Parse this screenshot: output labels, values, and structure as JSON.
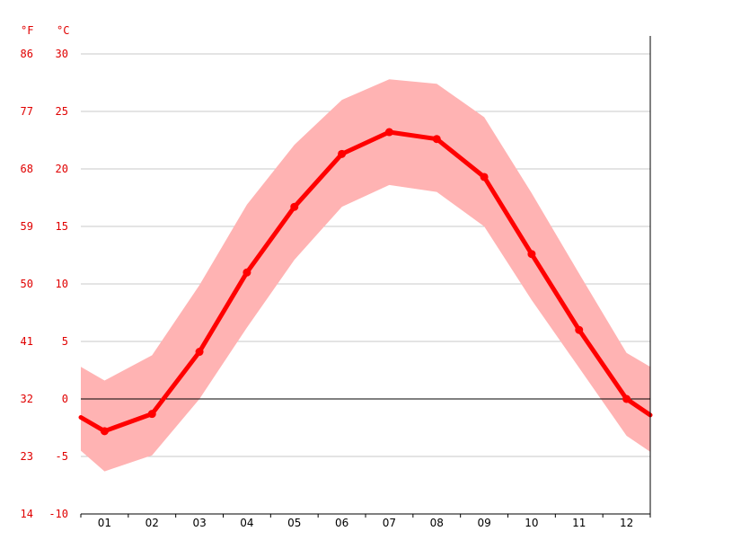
{
  "chart_data": {
    "type": "line",
    "title": "",
    "xlabel": "",
    "ylabel": "",
    "units": {
      "fahrenheit": "°F",
      "celsius": "°C"
    },
    "categories": [
      "01",
      "02",
      "03",
      "04",
      "05",
      "06",
      "07",
      "08",
      "09",
      "10",
      "11",
      "12"
    ],
    "ylim_c": [
      -10,
      30
    ],
    "yticks_c": [
      "30",
      "25",
      "20",
      "15",
      "10",
      "5",
      "0",
      "-5",
      "-10"
    ],
    "yticks_f": [
      "86",
      "77",
      "68",
      "59",
      "50",
      "41",
      "32",
      "23",
      "14"
    ],
    "grid": true,
    "colors": {
      "line": "#ff0000",
      "band": "#ffb3b3",
      "axis_text": "#e00000"
    },
    "series": [
      {
        "values": [
          -2.8,
          -1.3,
          4.1,
          11.0,
          16.7,
          21.3,
          23.2,
          22.6,
          19.3,
          12.6,
          6.0,
          0.0
        ],
        "role": "mean"
      },
      {
        "values": [
          1.6,
          3.8,
          9.9,
          16.9,
          22.1,
          26.0,
          27.8,
          27.4,
          24.5,
          17.9,
          10.9,
          4.0
        ],
        "role": "max"
      },
      {
        "values": [
          -6.3,
          -4.9,
          0.0,
          6.2,
          12.1,
          16.7,
          18.6,
          18.0,
          15.0,
          8.6,
          2.7,
          -3.2
        ],
        "role": "min"
      }
    ],
    "edge_values": {
      "mean_left": -1.6,
      "mean_right": -1.4,
      "max_left": 2.8,
      "max_right": 2.8,
      "min_left": -4.5,
      "min_right": -4.6
    }
  }
}
